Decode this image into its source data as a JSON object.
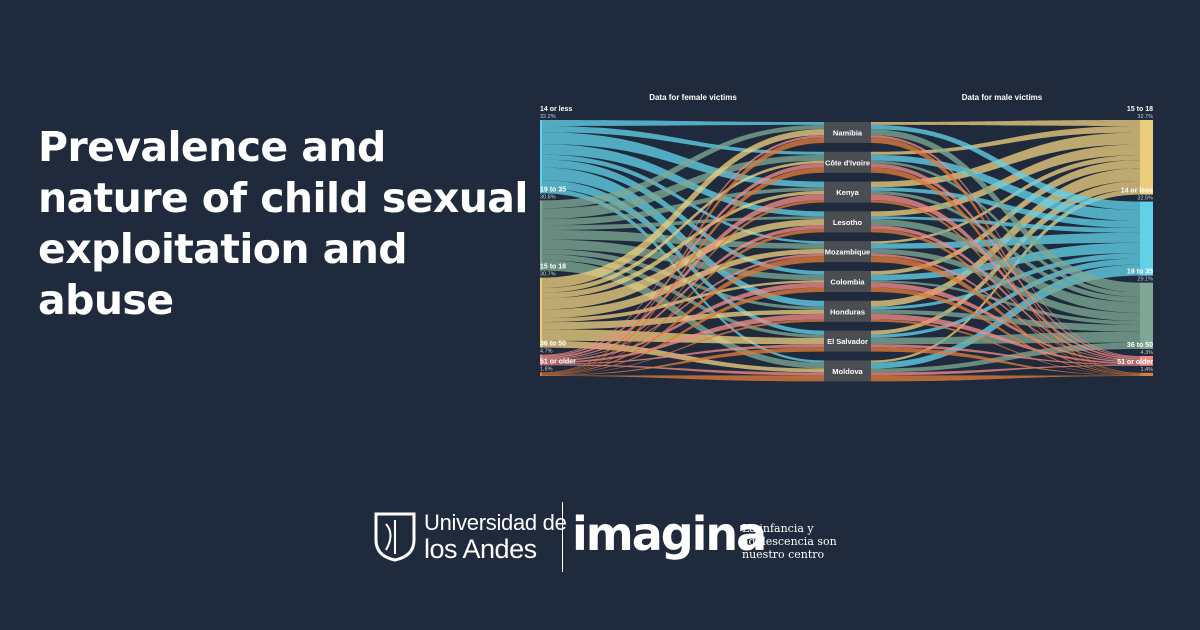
{
  "headline": "Prevalence and nature of child sexual exploitation and abuse",
  "chart_data": {
    "type": "sankey",
    "left_title": "Data for female victims",
    "right_title": "Data for male victims",
    "countries": [
      "Namibia",
      "Côte d'Ivoire",
      "Kenya",
      "Lesotho",
      "Mozambique",
      "Colombia",
      "Honduras",
      "El Salvador",
      "Moldova"
    ],
    "left_groups": [
      {
        "label": "14 or less",
        "pct": "32.2%",
        "value": 32.2,
        "color": "#63d0e8"
      },
      {
        "label": "19 to 35",
        "pct": "30.8%",
        "value": 30.8,
        "color": "#7fa894"
      },
      {
        "label": "15 to 18",
        "pct": "30.7%",
        "value": 30.7,
        "color": "#ebcd7e"
      },
      {
        "label": "36 to 50",
        "pct": "4.7%",
        "value": 4.7,
        "color": "#f08a86"
      },
      {
        "label": "51 or older",
        "pct": "1.6%",
        "value": 1.6,
        "color": "#e07a3a"
      }
    ],
    "right_groups": [
      {
        "label": "15 to 18",
        "pct": "32.7%",
        "value": 32.7,
        "color": "#ebcd7e"
      },
      {
        "label": "14 or less",
        "pct": "32.5%",
        "value": 32.5,
        "color": "#63d0e8"
      },
      {
        "label": "19 to 35",
        "pct": "29.1%",
        "value": 29.1,
        "color": "#7fa894"
      },
      {
        "label": "36 to 50",
        "pct": "4.3%",
        "value": 4.3,
        "color": "#f08a86"
      },
      {
        "label": "51 or older",
        "pct": "1.4%",
        "value": 1.4,
        "color": "#e07a3a"
      }
    ]
  },
  "footer": {
    "university_line1": "Universidad de",
    "university_line2": "los Andes",
    "brand": "imagina",
    "tagline_line1": "La infancia y",
    "tagline_line2": "adolescencia son",
    "tagline_line3": "nuestro centro"
  }
}
